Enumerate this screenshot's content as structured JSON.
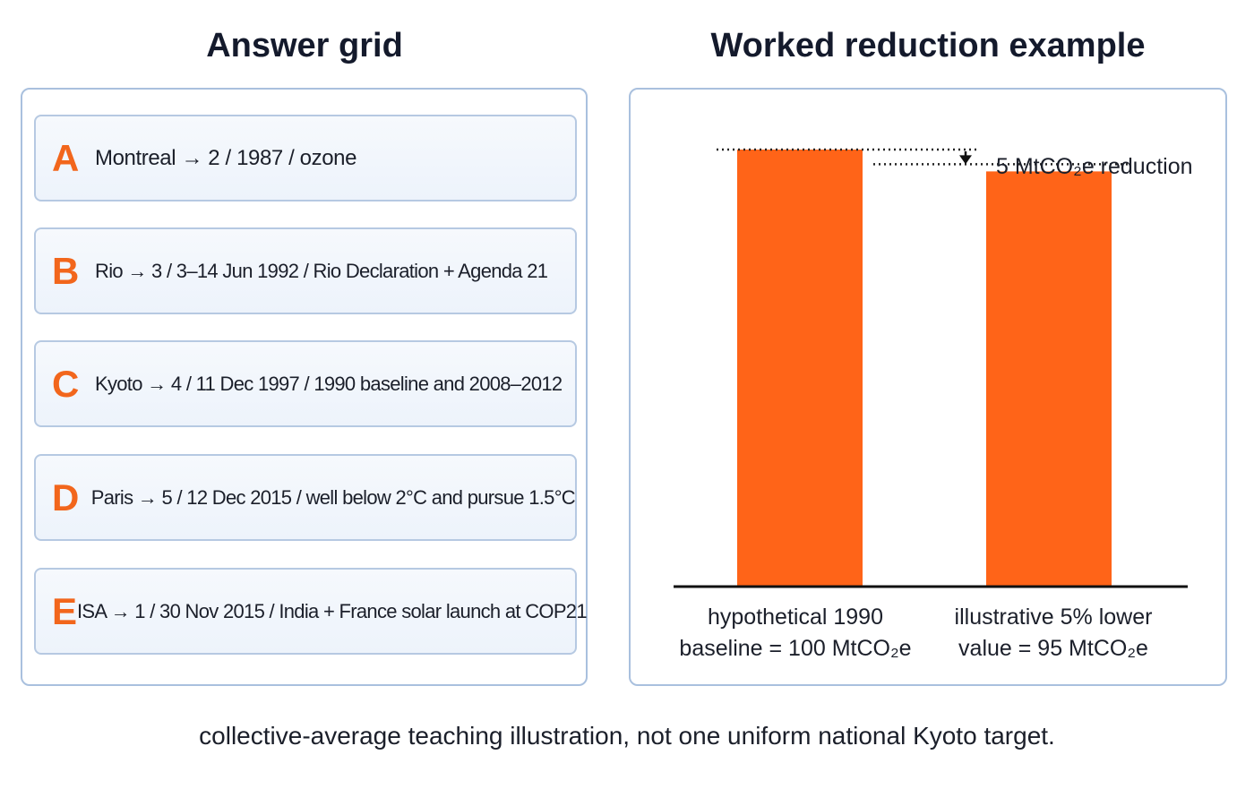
{
  "headings": {
    "left": "Answer grid",
    "right": "Worked reduction example"
  },
  "answer_grid": [
    {
      "letter": "A",
      "text": "Montreal → 2 / 1987 / ozone"
    },
    {
      "letter": "B",
      "text": "Rio → 3 / 3–14 Jun 1992 / Rio Declaration + Agenda 21"
    },
    {
      "letter": "C",
      "text": "Kyoto → 4 / 11 Dec 1997 / 1990 baseline and 2008–2012"
    },
    {
      "letter": "D",
      "text": "Paris → 5 / 12 Dec 2015 / well below 2°C and pursue 1.5°C"
    },
    {
      "letter": "E",
      "text": "ISA → 1 / 30 Nov 2015 / India + France solar launch at COP21"
    }
  ],
  "chart_data": {
    "type": "bar",
    "title": "Worked reduction example",
    "categories": [
      [
        "hypothetical 1990",
        "baseline = 100 MtCO₂e"
      ],
      [
        "illustrative 5% lower",
        "value = 95 MtCO₂e"
      ]
    ],
    "values": [
      100,
      95
    ],
    "unit": "MtCO₂e",
    "ylim": [
      0,
      100
    ],
    "bar_color": "#ff6418",
    "grid": false,
    "annotation": "5 MtCO₂e reduction"
  },
  "footer": "collective-average teaching illustration, not one uniform national Kyoto target."
}
